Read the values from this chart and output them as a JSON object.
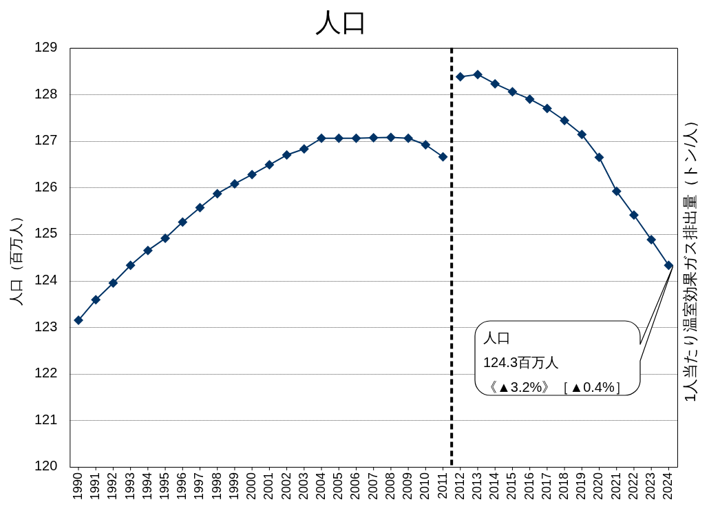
{
  "chart_data": {
    "type": "line",
    "title": "人口",
    "ylabel": "人口（百万人）",
    "y2label": "1人当たり温室効果ガス排出量（トン/人）",
    "xlim": [
      1989.5,
      2024.5
    ],
    "xticks": [
      1990,
      1991,
      1992,
      1993,
      1994,
      1995,
      1996,
      1997,
      1998,
      1999,
      2000,
      2001,
      2002,
      2003,
      2004,
      2005,
      2006,
      2007,
      2008,
      2009,
      2010,
      2011,
      2012,
      2013,
      2014,
      2015,
      2016,
      2017,
      2018,
      2019,
      2020,
      2021,
      2022,
      2023,
      2024
    ],
    "ylim": [
      120,
      129
    ],
    "yticks": [
      120,
      121,
      122,
      123,
      124,
      125,
      126,
      127,
      128,
      129
    ],
    "grid": "y",
    "legend": false,
    "marker": "diamond",
    "line_style": "solid",
    "series": [
      {
        "color": "#003366",
        "x": [
          1990,
          1991,
          1992,
          1993,
          1994,
          1995,
          1996,
          1997,
          1998,
          1999,
          2000,
          2001,
          2002,
          2003,
          2004,
          2005,
          2006,
          2007,
          2008,
          2009,
          2010,
          2011
        ],
        "values": [
          123.15,
          123.59,
          123.95,
          124.33,
          124.65,
          124.91,
          125.26,
          125.57,
          125.87,
          126.08,
          126.28,
          126.49,
          126.7,
          126.83,
          127.06,
          127.06,
          127.06,
          127.07,
          127.08,
          127.06,
          126.92,
          126.66
        ]
      },
      {
        "color": "#003366",
        "x": [
          2012,
          2013,
          2014,
          2015,
          2016,
          2017,
          2018,
          2019,
          2020,
          2021,
          2022,
          2023,
          2024
        ],
        "values": [
          128.38,
          128.43,
          128.23,
          128.06,
          127.9,
          127.7,
          127.44,
          127.14,
          126.65,
          125.92,
          125.41,
          124.88,
          124.33
        ]
      }
    ],
    "ref_lines": [
      {
        "axis": "x",
        "value": 2011.5,
        "color": "#000000",
        "line_style": "dashed"
      }
    ],
    "annotations": [
      "人口",
      "124.3百万人",
      "《▲3.2%》［▲0.4%］"
    ]
  }
}
